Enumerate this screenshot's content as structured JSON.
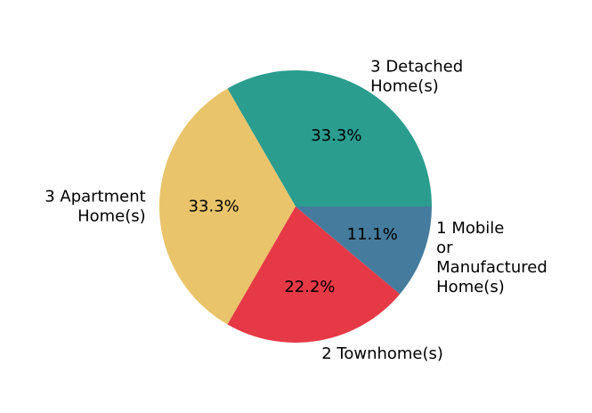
{
  "chart_data": {
    "type": "pie",
    "title": "",
    "slices": [
      {
        "label_lines": [
          "3 Detached",
          "Home(s)"
        ],
        "value": 3,
        "percent_label": "33.3%",
        "color": "#2a9d8f"
      },
      {
        "label_lines": [
          "3 Apartment",
          "Home(s)"
        ],
        "value": 3,
        "percent_label": "33.3%",
        "color": "#e9c46a"
      },
      {
        "label_lines": [
          "2 Townhome(s)"
        ],
        "value": 2,
        "percent_label": "22.2%",
        "color": "#e63946"
      },
      {
        "label_lines": [
          "1 Mobile",
          "or",
          "Manufactured",
          "Home(s)"
        ],
        "value": 1,
        "percent_label": "11.1%",
        "color": "#457b9d"
      }
    ],
    "start_angle_deg": 0,
    "direction": "counterclockwise",
    "legend": "none"
  }
}
